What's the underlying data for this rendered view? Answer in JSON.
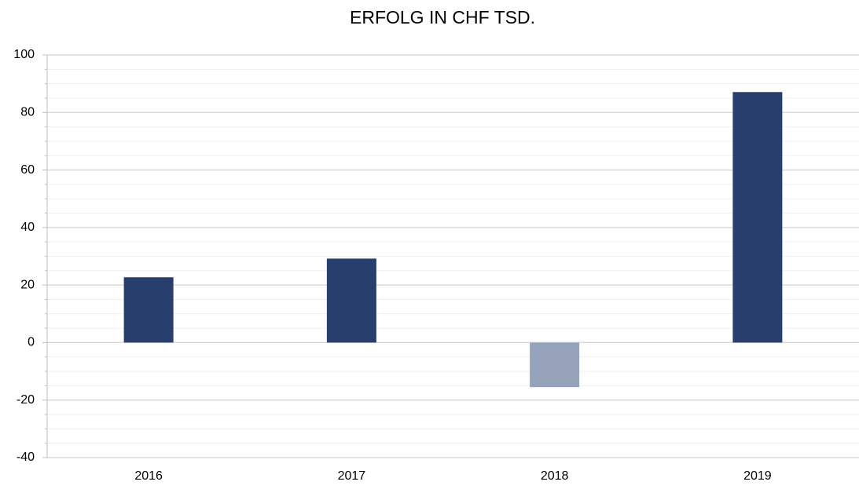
{
  "chart_data": {
    "type": "bar",
    "title": "ERFOLG IN CHF TSD.",
    "categories": [
      "2016",
      "2017",
      "2018",
      "2019"
    ],
    "values": [
      22.7,
      29.2,
      -15.5,
      87.1
    ],
    "colors": [
      "#283f6e",
      "#283f6e",
      "#96a3ba",
      "#283f6e"
    ],
    "ylim": [
      -40,
      100
    ],
    "yticks": [
      -40,
      -20,
      0,
      20,
      40,
      60,
      80,
      100
    ],
    "minor_yticks": [
      -35,
      -30,
      -25,
      -15,
      -10,
      -5,
      5,
      10,
      15,
      25,
      30,
      35,
      45,
      50,
      55,
      65,
      70,
      75,
      85,
      90,
      95
    ],
    "grid": true
  }
}
